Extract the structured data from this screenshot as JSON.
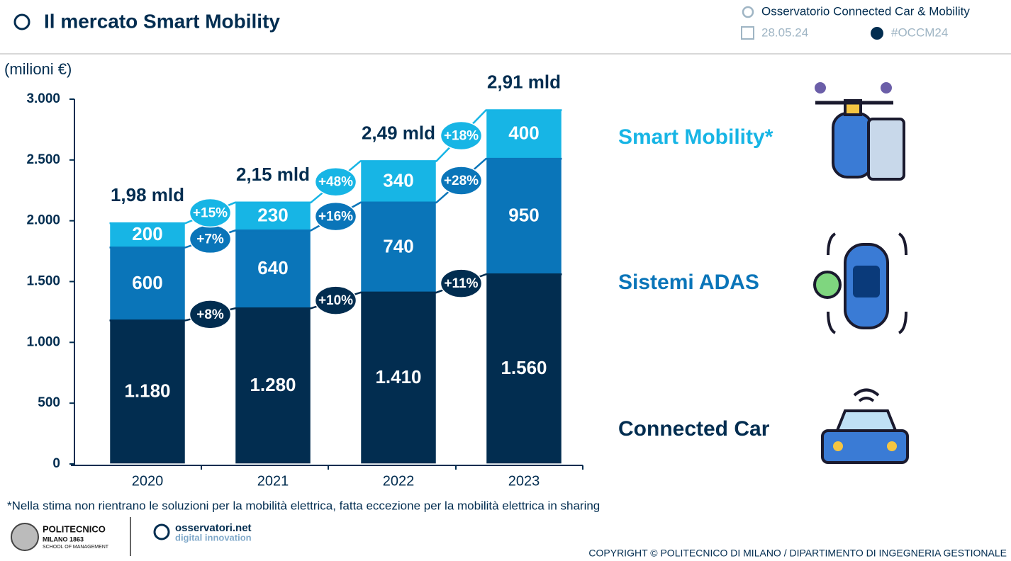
{
  "header": {
    "title": "Il mercato Smart Mobility",
    "observatory": "Osservatorio Connected Car & Mobility",
    "date": "28.05.24",
    "hashtag": "#OCCM24"
  },
  "chart_data": {
    "type": "stacked_bar",
    "unit_label": "(milioni €)",
    "categories": [
      "2020",
      "2021",
      "2022",
      "2023"
    ],
    "series": [
      {
        "name": "Connected Car",
        "color": "#022d50",
        "values": [
          1180,
          1280,
          1410,
          1560
        ],
        "value_labels": [
          "1.180",
          "1.280",
          "1.410",
          "1.560"
        ],
        "growth_labels": [
          "+8%",
          "+10%",
          "+11%"
        ]
      },
      {
        "name": "Sistemi ADAS",
        "color": "#0a75b9",
        "values": [
          600,
          640,
          740,
          950
        ],
        "growth_labels": [
          "+7%",
          "+16%",
          "+28%"
        ]
      },
      {
        "name": "Smart Mobility*",
        "color": "#17b5e5",
        "values": [
          200,
          230,
          340,
          400
        ],
        "growth_labels": [
          "+15%",
          "+48%",
          "+18%"
        ]
      }
    ],
    "total_labels": [
      "1,98 mld",
      "2,15 mld",
      "2,49 mld",
      "2,91 mld"
    ],
    "ylim": [
      0,
      3000
    ],
    "yticks": [
      0,
      500,
      {
        "value": 1000,
        "label": "1.000"
      },
      {
        "value": 1500,
        "label": "1.500"
      },
      {
        "value": 2000,
        "label": "2.000"
      },
      {
        "value": 2500,
        "label": "2.500"
      },
      {
        "value": 3000,
        "label": "3.000"
      }
    ],
    "grid": false
  },
  "footnote": "*Nella stima non rientrano le soluzioni per la mobilità elettrica, fatta eccezione per la mobilità elettrica in sharing",
  "footer": {
    "logo1": "POLITECNICO",
    "logo1_sub": "MILANO 1863",
    "logo1_sub2": "SCHOOL OF MANAGEMENT",
    "logo2": "osservatori.net",
    "logo2_sub": "digital innovation",
    "copyright": "COPYRIGHT © POLITECNICO DI MILANO / DIPARTIMENTO DI INGEGNERIA GESTIONALE"
  }
}
